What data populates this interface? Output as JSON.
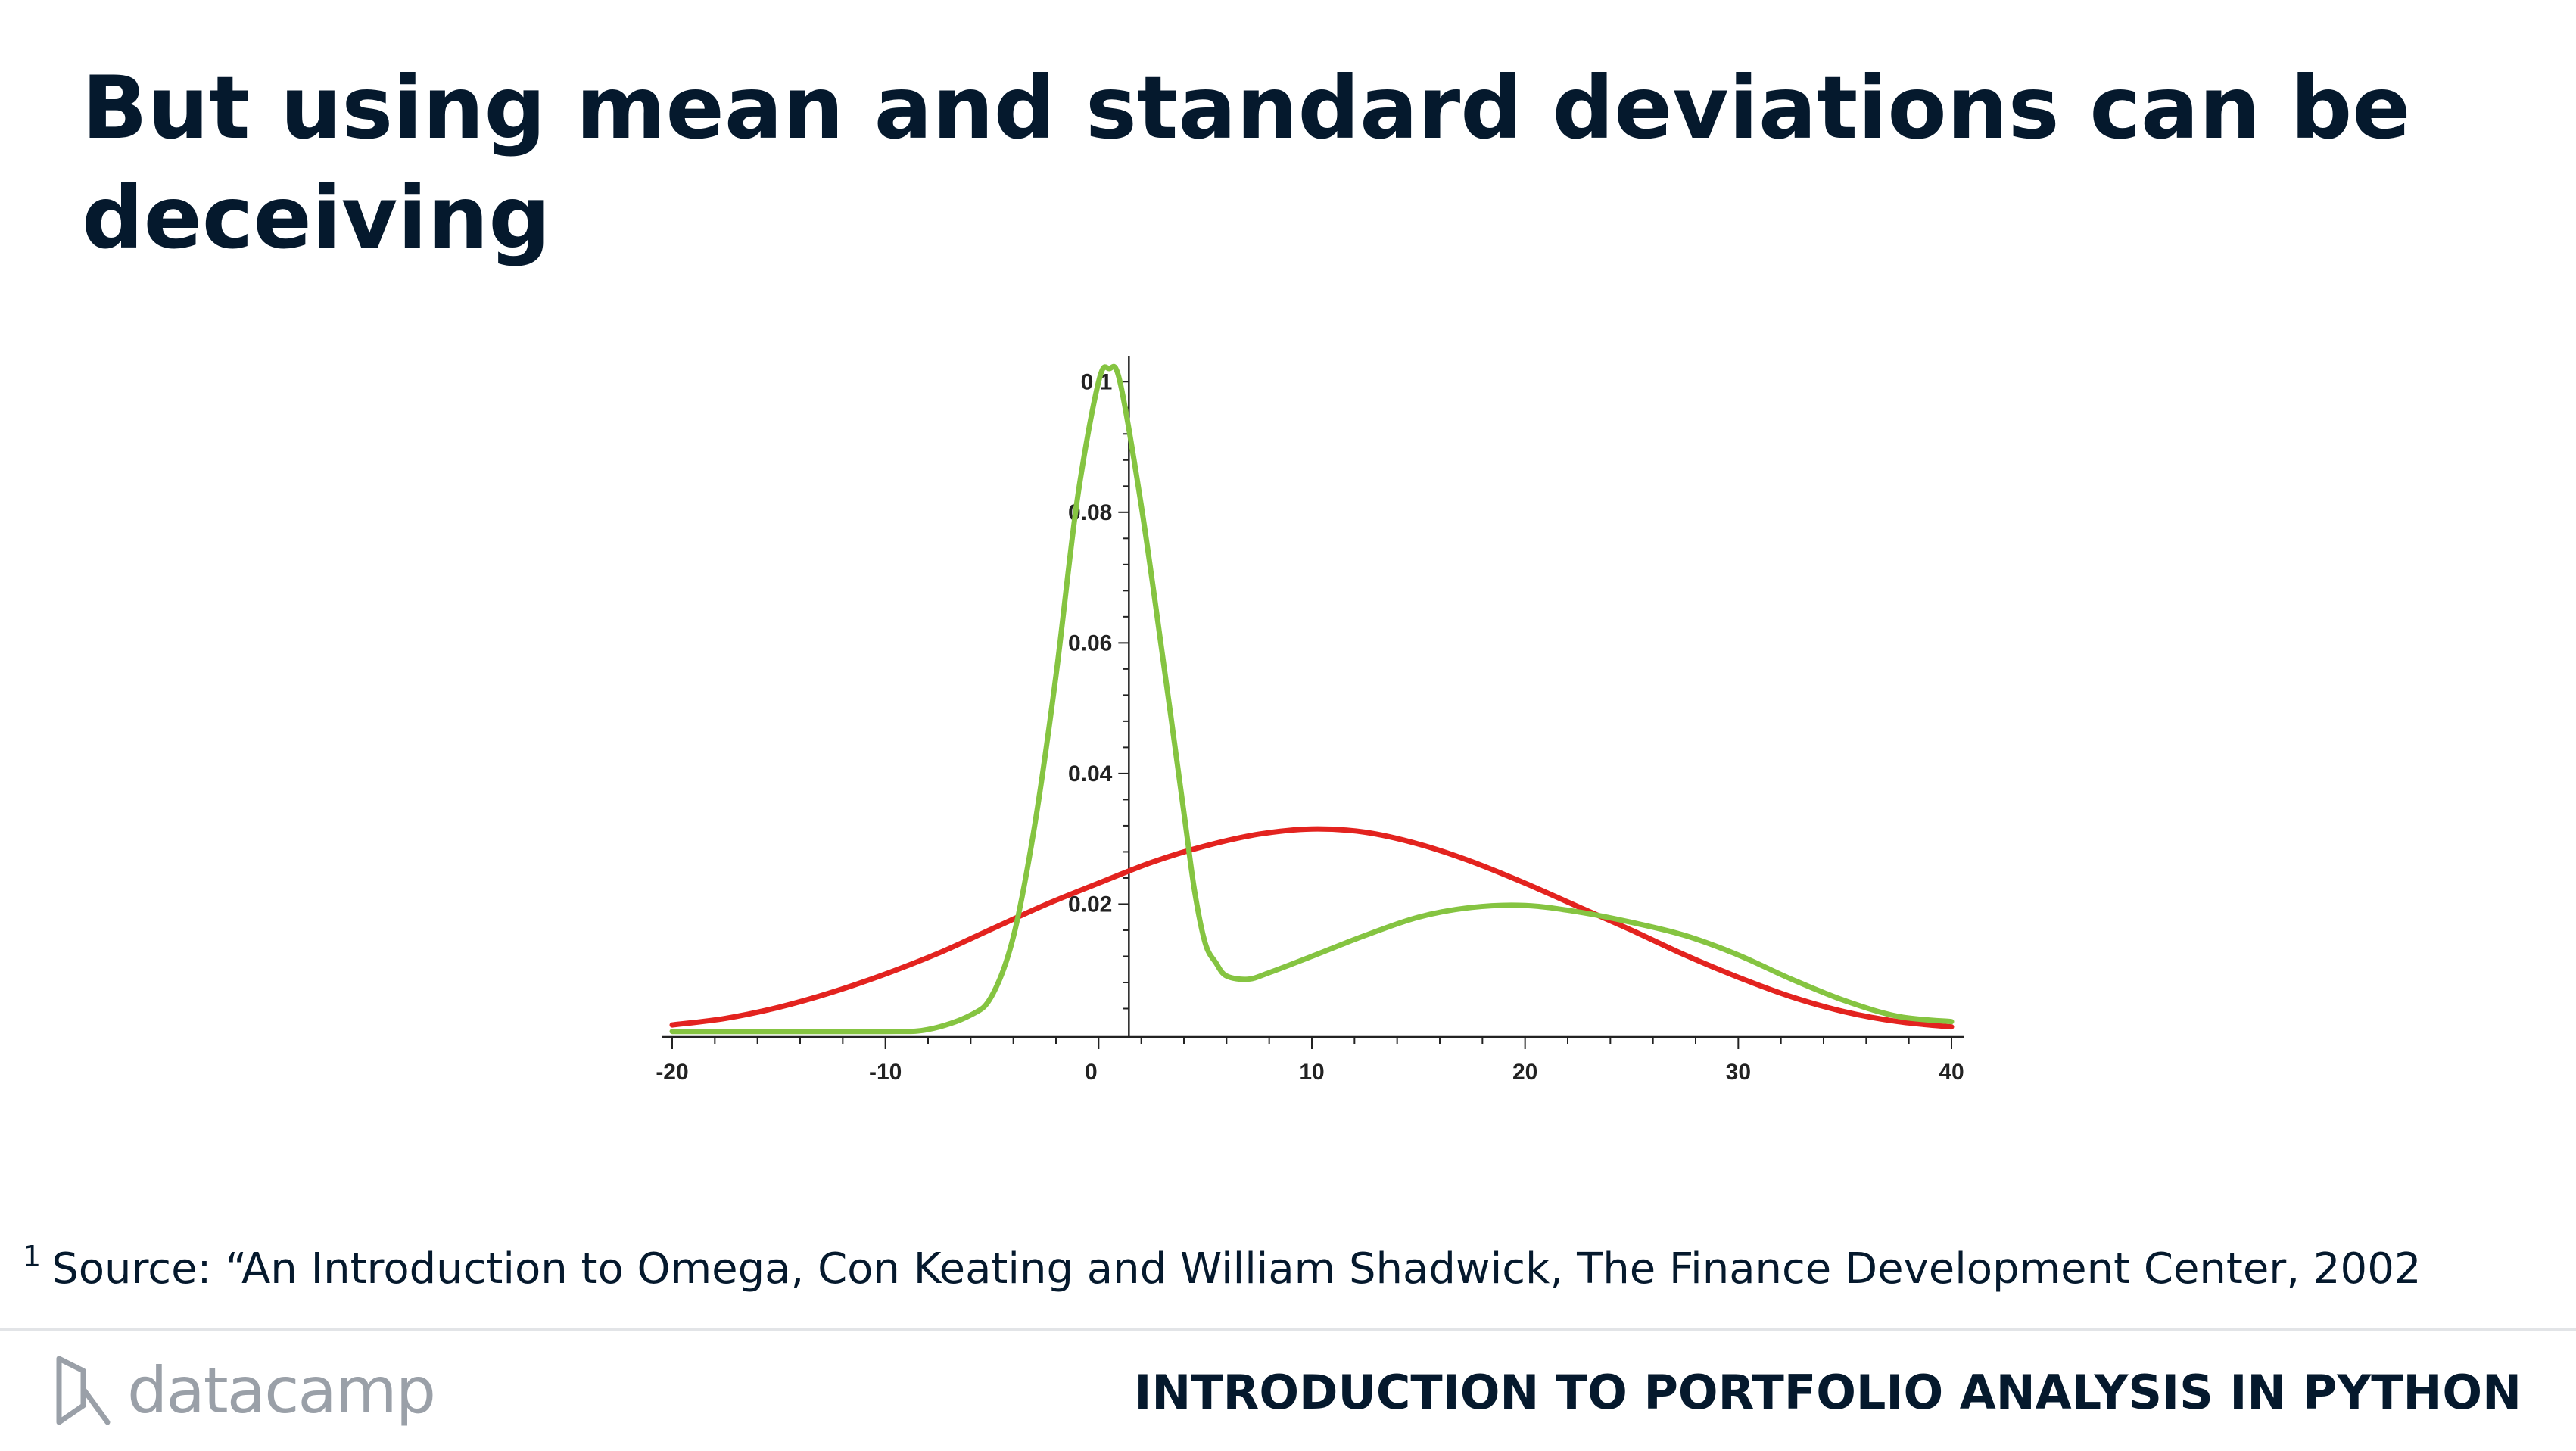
{
  "slide": {
    "title": "But using mean and standard deviations can be deceiving",
    "footnote_marker": "1",
    "footnote": "Source: “An Introduction to Omega, Con Keating and William Shadwick, The Finance Development Center, 2002",
    "brand": "datacamp",
    "course": "INTRODUCTION TO PORTFOLIO ANALYSIS IN PYTHON"
  },
  "chart_data": {
    "type": "line",
    "title": "",
    "xlabel": "",
    "ylabel": "",
    "xlim": [
      -20,
      40
    ],
    "ylim": [
      0,
      0.102
    ],
    "x_ticks": [
      -20,
      -10,
      0,
      10,
      20,
      30,
      40
    ],
    "y_ticks": [
      0.02,
      0.04,
      0.06,
      0.08,
      0.1
    ],
    "grid": false,
    "legend": "none",
    "series": [
      {
        "color": "#e3231f",
        "x": [
          -20,
          -17.5,
          -15,
          -12.5,
          -10,
          -7.5,
          -5,
          -2.5,
          0,
          2.5,
          5,
          7.5,
          10,
          12.5,
          15,
          17.5,
          20,
          22.5,
          25,
          27.5,
          30,
          32.5,
          35,
          37.5,
          40
        ],
        "y": [
          0.0015,
          0.0025,
          0.0042,
          0.0065,
          0.0093,
          0.0125,
          0.0162,
          0.0199,
          0.0232,
          0.0264,
          0.0289,
          0.0307,
          0.0315,
          0.031,
          0.0292,
          0.0265,
          0.0232,
          0.0196,
          0.016,
          0.0122,
          0.0088,
          0.0058,
          0.0035,
          0.002,
          0.0012
        ]
      },
      {
        "color": "#85c441",
        "x": [
          -20,
          -15,
          -10,
          -8,
          -6,
          -5,
          -4,
          -3,
          -2,
          -1,
          0,
          0.5,
          1,
          2,
          3,
          4,
          4.5,
          5,
          5.5,
          6,
          7,
          8,
          10,
          12.5,
          15,
          17.5,
          20,
          22.5,
          25,
          27.5,
          30,
          32.5,
          35,
          37.5,
          40
        ],
        "y": [
          0.0005,
          0.0005,
          0.0005,
          0.0008,
          0.003,
          0.006,
          0.015,
          0.032,
          0.055,
          0.082,
          0.1,
          0.102,
          0.1,
          0.081,
          0.058,
          0.034,
          0.022,
          0.014,
          0.011,
          0.009,
          0.0085,
          0.0095,
          0.012,
          0.0152,
          0.018,
          0.0195,
          0.0198,
          0.0188,
          0.0172,
          0.0152,
          0.0122,
          0.0085,
          0.0052,
          0.0028,
          0.002
        ]
      }
    ]
  },
  "colors": {
    "title": "#05192d",
    "axis": "#222222",
    "brand_gray": "#9aa0a8"
  }
}
